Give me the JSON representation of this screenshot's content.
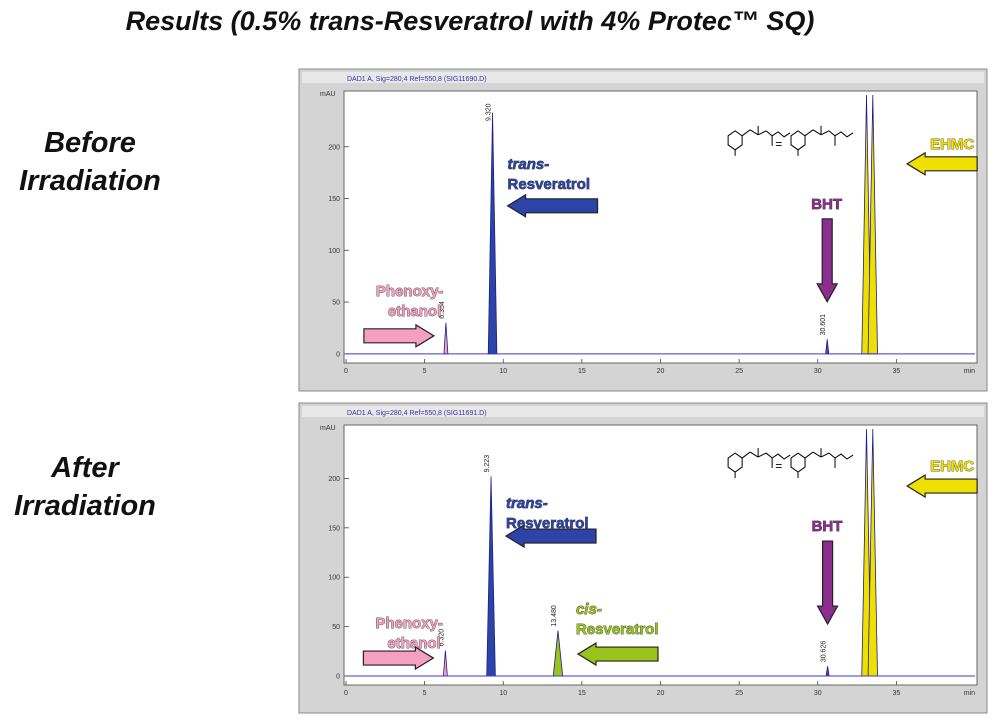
{
  "page": {
    "title": "Results (0.5% trans-Resveratrol with 4% Protec™ SQ)"
  },
  "panels": [
    {
      "side_label": [
        "Before",
        "Irradiation"
      ],
      "header": "DAD1 A, Sig=280,4 Ref=550,8 (SIG11690.D)",
      "annotations": {
        "phenoxyethanol": [
          "Phenoxy-",
          "ethanol"
        ],
        "trans": [
          "trans-",
          "Resveratrol"
        ],
        "cis": null,
        "bht": "BHT",
        "ehmc": "EHMC"
      }
    },
    {
      "side_label": [
        "After",
        "Irradiation"
      ],
      "header": "DAD1 A, Sig=280,4 Ref=550,8 (SIG11691.D)",
      "annotations": {
        "phenoxyethanol": [
          "Phenoxy-",
          "ethanol"
        ],
        "trans": [
          "trans-",
          "Resveratrol"
        ],
        "cis": [
          "cis-",
          "Resveratrol"
        ],
        "bht": "BHT",
        "ehmc": "EHMC"
      }
    }
  ],
  "colors": {
    "trans": "#2c44a8",
    "cis": "#9ac31c",
    "phenoxy": "#f5a0c0",
    "bht": "#8b2f8f",
    "ehmc": "#f0e000",
    "baseline": "#3a3ad0",
    "frame_bg": "#d4d4d4"
  },
  "chart_data": [
    {
      "type": "line",
      "xlabel": "min",
      "ylabel": "mAU",
      "xlim": [
        0,
        40
      ],
      "ylim": [
        -5,
        250
      ],
      "x_ticks": [
        0,
        5,
        10,
        15,
        20,
        25,
        30,
        35
      ],
      "y_ticks": [
        0,
        50,
        100,
        150,
        200
      ],
      "peaks": [
        {
          "rt": 6.354,
          "height": 30,
          "label": "6.354",
          "color": "phenoxy",
          "width": 0.25
        },
        {
          "rt": 9.32,
          "height": 233,
          "label": "9.320",
          "color": "trans",
          "width": 0.55
        },
        {
          "rt": 30.601,
          "height": 14,
          "label": "30.601",
          "color": "bht",
          "width": 0.2
        },
        {
          "rt": 33.1,
          "height": 250,
          "label": "",
          "color": "ehmc",
          "width": 0.6
        },
        {
          "rt": 33.5,
          "height": 250,
          "label": "",
          "color": "ehmc",
          "width": 0.6
        }
      ]
    },
    {
      "type": "line",
      "xlabel": "min",
      "ylabel": "mAU",
      "xlim": [
        0,
        40
      ],
      "ylim": [
        -5,
        250
      ],
      "x_ticks": [
        0,
        5,
        10,
        15,
        20,
        25,
        30,
        35
      ],
      "y_ticks": [
        0,
        50,
        100,
        150,
        200
      ],
      "peaks": [
        {
          "rt": 6.32,
          "height": 26,
          "label": "6.320",
          "color": "phenoxy",
          "width": 0.25
        },
        {
          "rt": 9.223,
          "height": 202,
          "label": "9.223",
          "color": "trans",
          "width": 0.55
        },
        {
          "rt": 13.48,
          "height": 46,
          "label": "13.480",
          "color": "cis",
          "width": 0.6
        },
        {
          "rt": 30.626,
          "height": 10,
          "label": "30.626",
          "color": "bht",
          "width": 0.2
        },
        {
          "rt": 33.1,
          "height": 250,
          "label": "",
          "color": "ehmc",
          "width": 0.6
        },
        {
          "rt": 33.5,
          "height": 250,
          "label": "",
          "color": "ehmc",
          "width": 0.6
        }
      ]
    }
  ]
}
